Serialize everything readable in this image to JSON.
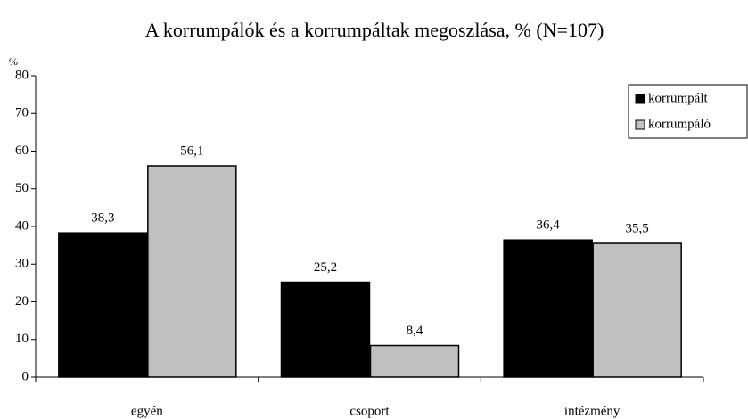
{
  "chart_data": {
    "type": "bar",
    "title": "A korrumpálók és a korrumpáltak megoszlása, % (N=107)",
    "y_label": "%",
    "categories": [
      "egyén",
      "csoport",
      "intézmény"
    ],
    "series": [
      {
        "name": "korrumpált",
        "color": "#000000",
        "values": [
          38.3,
          25.2,
          36.4
        ],
        "value_labels": [
          "38,3",
          "25,2",
          "36,4"
        ]
      },
      {
        "name": "korrumpáló",
        "color": "#c0c0c0",
        "values": [
          56.1,
          8.4,
          35.5
        ],
        "value_labels": [
          "56,1",
          "8,4",
          "35,5"
        ]
      }
    ],
    "ylim": [
      0,
      80
    ],
    "yticks": [
      0,
      10,
      20,
      30,
      40,
      50,
      60,
      70,
      80
    ],
    "grid": false,
    "legend": "upper right"
  }
}
